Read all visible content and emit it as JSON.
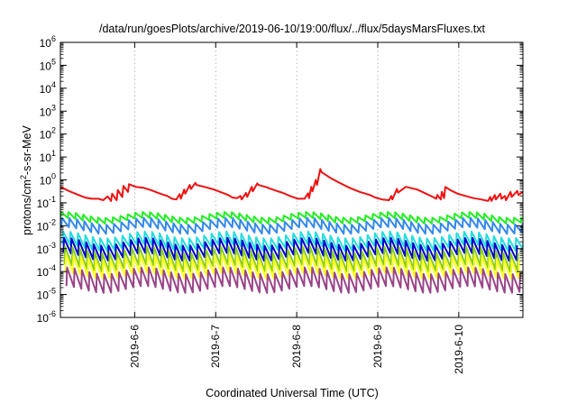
{
  "chart_data": {
    "type": "line",
    "title": "/data/run/goesPlots/archive/2019-06-10/19:00/flux/../flux/5daysMarsFluxes.txt",
    "xlabel": "Coordinated Universal Time (UTC)",
    "ylabel": "protons/cm²-s-sr-MeV",
    "x_type": "time",
    "xlim": [
      "2019-06-05T02:00",
      "2019-06-10T19:00"
    ],
    "x_ticks": [
      "2019-6-6",
      "2019-6-7",
      "2019-6-8",
      "2019-6-9",
      "2019-6-10"
    ],
    "y_scale": "log",
    "ylim": [
      1e-06,
      1000000.0
    ],
    "y_ticks": [
      {
        "base": "10",
        "exp": "-6",
        "value": 1e-06
      },
      {
        "base": "10",
        "exp": "-5",
        "value": 1e-05
      },
      {
        "base": "10",
        "exp": "-4",
        "value": 0.0001
      },
      {
        "base": "10",
        "exp": "-3",
        "value": 0.001
      },
      {
        "base": "10",
        "exp": "-2",
        "value": 0.01
      },
      {
        "base": "10",
        "exp": "-1",
        "value": 0.1
      },
      {
        "base": "10",
        "exp": "0",
        "value": 1
      },
      {
        "base": "10",
        "exp": "1",
        "value": 10
      },
      {
        "base": "10",
        "exp": "2",
        "value": 100
      },
      {
        "base": "10",
        "exp": "3",
        "value": 1000
      },
      {
        "base": "10",
        "exp": "4",
        "value": 10000
      },
      {
        "base": "10",
        "exp": "5",
        "value": 100000
      },
      {
        "base": "10",
        "exp": "6",
        "value": 1000000
      }
    ],
    "grid": "vertical dotted at x ticks",
    "legend": "none",
    "series": [
      {
        "color": "#ee1111",
        "x": [
          "2019-06-05T02:00",
          "2019-06-05T04:40",
          "2019-06-05T07:20",
          "2019-06-05T09:20",
          "2019-06-05T11:20",
          "2019-06-05T13:20",
          "2019-06-05T14:40",
          "2019-06-05T16:00",
          "2019-06-05T17:00",
          "2019-06-05T17:20",
          "2019-06-05T18:40",
          "2019-06-05T19:00",
          "2019-06-05T20:20",
          "2019-06-05T20:40",
          "2019-06-05T22:00",
          "2019-06-05T22:20",
          "2019-06-06T00:20",
          "2019-06-06T02:40",
          "2019-06-06T05:00",
          "2019-06-06T07:20",
          "2019-06-06T09:40",
          "2019-06-06T11:00",
          "2019-06-06T12:20",
          "2019-06-06T13:20",
          "2019-06-06T13:40",
          "2019-06-06T14:40",
          "2019-06-06T15:00",
          "2019-06-06T16:20",
          "2019-06-06T16:40",
          "2019-06-06T18:00",
          "2019-06-06T18:20",
          "2019-06-06T20:40",
          "2019-06-06T23:00",
          "2019-06-07T01:20",
          "2019-06-07T03:40",
          "2019-06-07T05:00",
          "2019-06-07T06:20",
          "2019-06-07T07:20",
          "2019-06-07T07:40",
          "2019-06-07T09:00",
          "2019-06-07T09:20",
          "2019-06-07T10:40",
          "2019-06-07T11:00",
          "2019-06-07T12:20",
          "2019-06-07T12:40",
          "2019-06-07T15:00",
          "2019-06-07T17:20",
          "2019-06-07T20:00",
          "2019-06-07T22:00",
          "2019-06-08T00:20",
          "2019-06-08T02:20",
          "2019-06-08T03:20",
          "2019-06-08T03:40",
          "2019-06-08T04:20",
          "2019-06-08T04:40",
          "2019-06-08T05:40",
          "2019-06-08T06:00",
          "2019-06-08T07:00",
          "2019-06-08T07:20",
          "2019-06-08T09:40",
          "2019-06-08T12:40",
          "2019-06-08T15:40",
          "2019-06-08T18:40",
          "2019-06-08T21:40",
          "2019-06-08T23:20",
          "2019-06-09T01:20",
          "2019-06-09T03:20",
          "2019-06-09T04:00",
          "2019-06-09T04:20",
          "2019-06-09T05:40",
          "2019-06-09T06:00",
          "2019-06-09T08:20",
          "2019-06-09T11:40",
          "2019-06-09T14:20",
          "2019-06-09T16:20",
          "2019-06-09T17:20",
          "2019-06-09T17:40",
          "2019-06-09T18:40",
          "2019-06-09T19:00",
          "2019-06-09T19:40",
          "2019-06-09T20:00",
          "2019-06-09T21:20",
          "2019-06-09T23:40",
          "2019-06-10T02:00",
          "2019-06-10T04:20",
          "2019-06-10T06:40",
          "2019-06-10T08:40",
          "2019-06-10T09:20",
          "2019-06-10T09:40",
          "2019-06-10T10:40",
          "2019-06-10T11:00",
          "2019-06-10T12:20",
          "2019-06-10T12:40",
          "2019-06-10T13:40",
          "2019-06-10T14:00",
          "2019-06-10T15:20",
          "2019-06-10T15:40",
          "2019-06-10T17:20",
          "2019-06-10T17:40",
          "2019-06-10T19:00"
        ],
        "y": [
          0.5,
          0.32,
          0.22,
          0.17,
          0.15,
          0.15,
          0.13,
          0.19,
          0.12,
          0.25,
          0.13,
          0.36,
          0.18,
          0.55,
          0.3,
          0.65,
          0.5,
          0.45,
          0.35,
          0.26,
          0.2,
          0.15,
          0.14,
          0.24,
          0.15,
          0.38,
          0.25,
          0.6,
          0.4,
          0.75,
          0.6,
          0.5,
          0.4,
          0.3,
          0.22,
          0.17,
          0.16,
          0.2,
          0.14,
          0.27,
          0.18,
          0.5,
          0.32,
          0.7,
          0.6,
          0.48,
          0.36,
          0.27,
          0.2,
          0.15,
          0.15,
          0.26,
          0.16,
          0.5,
          0.32,
          1.0,
          0.6,
          3.0,
          2.2,
          1.3,
          0.75,
          0.45,
          0.3,
          0.22,
          0.17,
          0.14,
          0.13,
          0.2,
          0.14,
          0.4,
          0.28,
          0.5,
          0.38,
          0.25,
          0.18,
          0.15,
          0.22,
          0.14,
          0.3,
          0.16,
          0.5,
          0.37,
          0.25,
          0.2,
          0.16,
          0.14,
          0.12,
          0.18,
          0.12,
          0.22,
          0.14,
          0.25,
          0.15,
          0.2,
          0.13,
          0.3,
          0.18,
          0.33,
          0.22,
          0.3
        ]
      },
      {
        "color": "#22ee22",
        "x": [
          "2019-06-05T02:00",
          "2019-06-10T19:00"
        ],
        "y": [
          0.03,
          0.03
        ],
        "pattern": "sawtooth",
        "peak_to_trough": 1.8,
        "period_hours": 2.2,
        "phase": 0.0,
        "day_dip": 0.55
      },
      {
        "color": "#3388ee",
        "x": [
          "2019-06-05T02:00",
          "2019-06-10T19:00"
        ],
        "y": [
          0.014,
          0.014
        ],
        "pattern": "sawtooth",
        "peak_to_trough": 2.5,
        "period_hours": 2.2,
        "phase": 0.3,
        "day_dip": 0.5
      },
      {
        "color": "#22dddd",
        "x": [
          "2019-06-05T02:00",
          "2019-06-10T19:00"
        ],
        "y": [
          0.003,
          0.003
        ],
        "pattern": "sawtooth",
        "peak_to_trough": 3.5,
        "period_hours": 2.2,
        "phase": 0.6,
        "day_dip": 0.5
      },
      {
        "color": "#0000cc",
        "x": [
          "2019-06-05T02:00",
          "2019-06-10T19:00"
        ],
        "y": [
          0.0014,
          0.0014
        ],
        "pattern": "sawtooth",
        "peak_to_trough": 4.5,
        "period_hours": 2.2,
        "phase": 0.9,
        "day_dip": 0.45
      },
      {
        "color": "#88cc22",
        "x": [
          "2019-06-05T02:00",
          "2019-06-10T19:00"
        ],
        "y": [
          0.0005,
          0.0005
        ],
        "pattern": "sawtooth",
        "peak_to_trough": 6.0,
        "period_hours": 2.2,
        "phase": 1.2,
        "day_dip": 0.5
      },
      {
        "color": "#ffff22",
        "x": [
          "2019-06-05T02:00",
          "2019-06-10T19:00"
        ],
        "y": [
          0.00022,
          0.00022
        ],
        "pattern": "sawtooth",
        "peak_to_trough": 6.0,
        "period_hours": 2.2,
        "phase": 1.5,
        "day_dip": 0.55
      },
      {
        "color": "#994488",
        "x": [
          "2019-06-05T02:00",
          "2019-06-10T19:00"
        ],
        "y": [
          6e-05,
          6e-05
        ],
        "pattern": "sawtooth",
        "peak_to_trough": 6.5,
        "period_hours": 2.2,
        "phase": 1.8,
        "day_dip": 0.5
      }
    ]
  }
}
